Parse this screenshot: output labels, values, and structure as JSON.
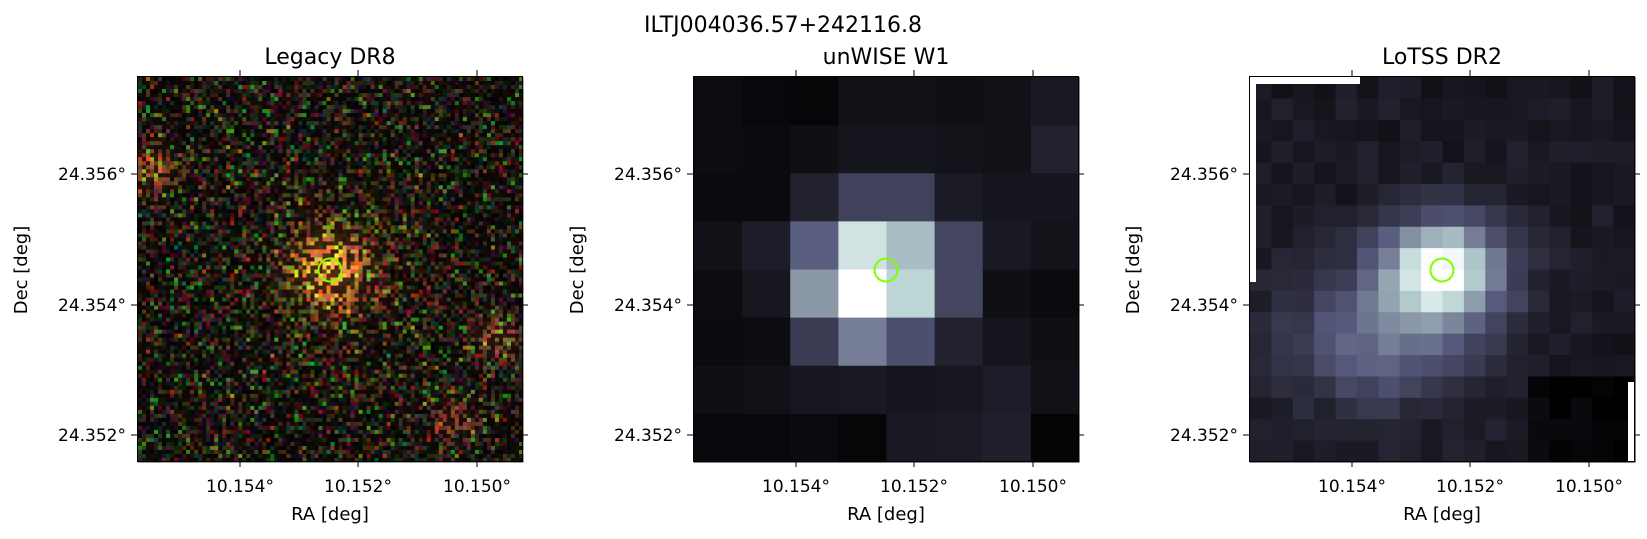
{
  "figure": {
    "title": "ILTJ004036.57+242116.8",
    "panels": [
      {
        "title": "Legacy DR8",
        "kind": "legacy-rgb",
        "xlabel": "RA [deg]",
        "ylabel": "Dec [deg]",
        "xticks": [
          "10.154°",
          "10.152°",
          "10.150°"
        ],
        "yticks": [
          "24.356°",
          "24.354°",
          "24.352°"
        ]
      },
      {
        "title": "unWISE W1",
        "kind": "unwise",
        "xlabel": "RA [deg]",
        "ylabel": "Dec [deg]",
        "xticks": [
          "10.154°",
          "10.152°",
          "10.150°"
        ],
        "yticks": [
          "24.356°",
          "24.354°",
          "24.352°"
        ]
      },
      {
        "title": "LoTSS DR2",
        "kind": "lotss",
        "xlabel": "RA [deg]",
        "ylabel": "Dec [deg]",
        "xticks": [
          "10.154°",
          "10.152°",
          "10.150°"
        ],
        "yticks": [
          "24.356°",
          "24.354°",
          "24.352°"
        ]
      }
    ],
    "marker_color": "#7fff00",
    "colormap": [
      "#000000",
      "#2a2a3a",
      "#55587a",
      "#8a98a8",
      "#bcd6d6",
      "#ffffff"
    ]
  }
}
